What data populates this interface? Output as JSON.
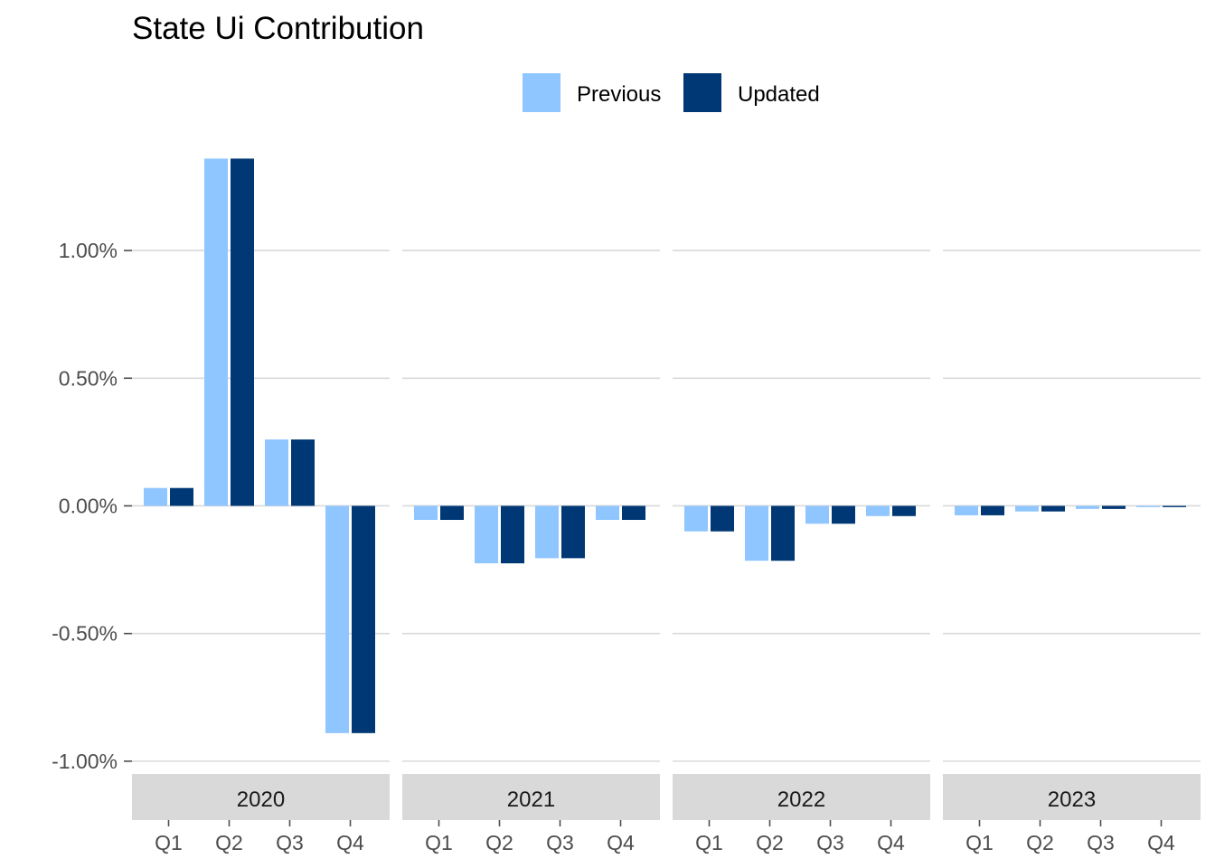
{
  "chart_data": {
    "type": "bar",
    "title": "State Ui Contribution",
    "xlabel": "",
    "ylabel": "",
    "legend_position": "top",
    "legend": [
      {
        "name": "Previous",
        "color": "#8fc6ff"
      },
      {
        "name": "Updated",
        "color": "#003875"
      }
    ],
    "y_range": [
      -1.05,
      1.45
    ],
    "y_ticks": [
      1.0,
      0.5,
      0.0,
      -0.5,
      -1.0
    ],
    "y_tick_labels": [
      "1.00%",
      "0.50%",
      "0.00%",
      "-0.50%",
      "-1.00%"
    ],
    "grid": true,
    "facets": [
      {
        "label": "2020",
        "categories": [
          "Q1",
          "Q2",
          "Q3",
          "Q4"
        ],
        "series": [
          {
            "name": "Previous",
            "values": [
              0.07,
              1.36,
              0.26,
              -0.89
            ]
          },
          {
            "name": "Updated",
            "values": [
              0.07,
              1.36,
              0.26,
              -0.89
            ]
          }
        ]
      },
      {
        "label": "2021",
        "categories": [
          "Q1",
          "Q2",
          "Q3",
          "Q4"
        ],
        "series": [
          {
            "name": "Previous",
            "values": [
              -0.055,
              -0.225,
              -0.205,
              -0.055
            ]
          },
          {
            "name": "Updated",
            "values": [
              -0.055,
              -0.225,
              -0.205,
              -0.055
            ]
          }
        ]
      },
      {
        "label": "2022",
        "categories": [
          "Q1",
          "Q2",
          "Q3",
          "Q4"
        ],
        "series": [
          {
            "name": "Previous",
            "values": [
              -0.1,
              -0.215,
              -0.07,
              -0.04
            ]
          },
          {
            "name": "Updated",
            "values": [
              -0.1,
              -0.215,
              -0.07,
              -0.04
            ]
          }
        ]
      },
      {
        "label": "2023",
        "categories": [
          "Q1",
          "Q2",
          "Q3",
          "Q4"
        ],
        "series": [
          {
            "name": "Previous",
            "values": [
              -0.037,
              -0.022,
              -0.012,
              -0.005
            ]
          },
          {
            "name": "Updated",
            "values": [
              -0.037,
              -0.022,
              -0.012,
              -0.005
            ]
          }
        ]
      }
    ]
  }
}
